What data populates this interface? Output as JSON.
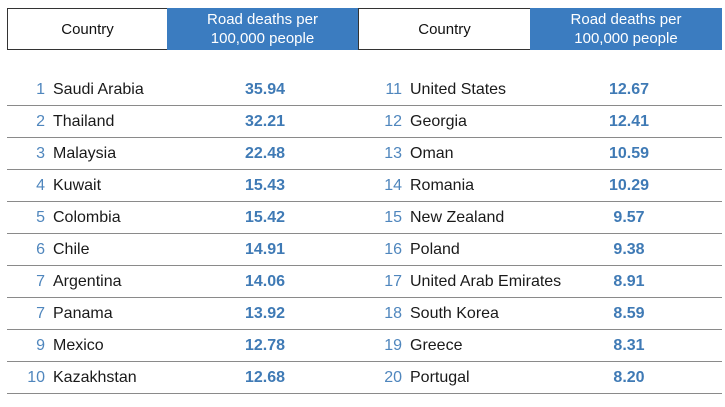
{
  "header": {
    "country_label": "Country",
    "value_label_line1": "Road deaths per",
    "value_label_line2": "100,000 people"
  },
  "colors": {
    "header_blue": "#3b7cc0",
    "value_blue": "#3f7ab5"
  },
  "rows": [
    {
      "rank": "1",
      "country": "Saudi Arabia",
      "value": "35.94"
    },
    {
      "rank": "2",
      "country": "Thailand",
      "value": "32.21"
    },
    {
      "rank": "3",
      "country": "Malaysia",
      "value": "22.48"
    },
    {
      "rank": "4",
      "country": "Kuwait",
      "value": "15.43"
    },
    {
      "rank": "5",
      "country": "Colombia",
      "value": "15.42"
    },
    {
      "rank": "6",
      "country": "Chile",
      "value": "14.91"
    },
    {
      "rank": "7",
      "country": "Argentina",
      "value": "14.06"
    },
    {
      "rank": "7",
      "country": "Panama",
      "value": "13.92"
    },
    {
      "rank": "9",
      "country": "Mexico",
      "value": "12.78"
    },
    {
      "rank": "10",
      "country": "Kazakhstan",
      "value": "12.68"
    },
    {
      "rank": "11",
      "country": "United States",
      "value": "12.67"
    },
    {
      "rank": "12",
      "country": "Georgia",
      "value": "12.41"
    },
    {
      "rank": "13",
      "country": "Oman",
      "value": "10.59"
    },
    {
      "rank": "14",
      "country": "Romania",
      "value": "10.29"
    },
    {
      "rank": "15",
      "country": "New Zealand",
      "value": "9.57"
    },
    {
      "rank": "16",
      "country": "Poland",
      "value": "9.38"
    },
    {
      "rank": "17",
      "country": "United Arab Emirates",
      "value": "8.91"
    },
    {
      "rank": "18",
      "country": "South Korea",
      "value": "8.59"
    },
    {
      "rank": "19",
      "country": "Greece",
      "value": "8.31"
    },
    {
      "rank": "20",
      "country": "Portugal",
      "value": "8.20"
    }
  ]
}
